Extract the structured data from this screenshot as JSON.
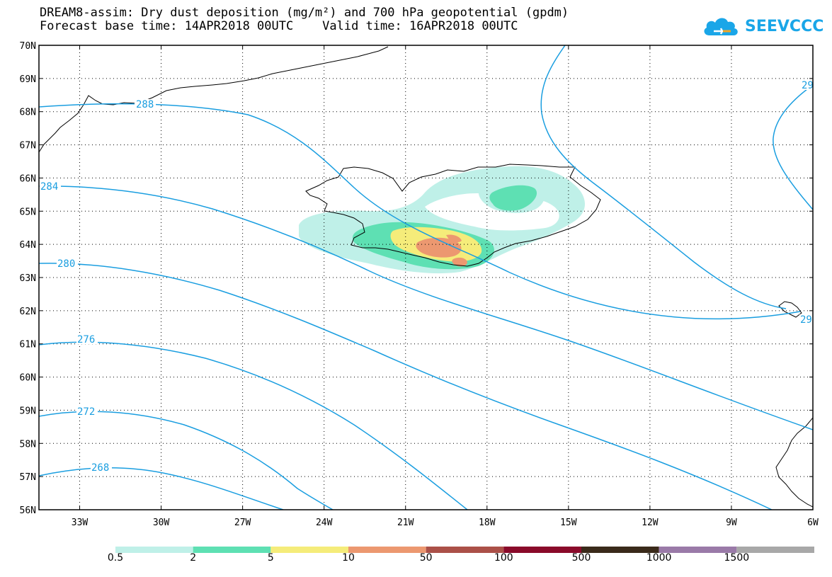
{
  "header": {
    "title_line1": "DREAM8-assim: Dry dust deposition (mg/m²) and 700 hPa geopotential (gpdm)",
    "title_line2": "Forecast base time: 14APR2018 00UTC    Valid time: 16APR2018 00UTC"
  },
  "logo": {
    "text": "SEEVCCC",
    "icon": "cloud-logo-icon",
    "color": "#1aa6e8"
  },
  "map": {
    "lat_labels": [
      "70N",
      "69N",
      "68N",
      "67N",
      "66N",
      "65N",
      "64N",
      "63N",
      "62N",
      "61N",
      "60N",
      "59N",
      "58N",
      "57N",
      "56N"
    ],
    "lon_labels": [
      "33W",
      "30W",
      "27W",
      "24W",
      "21W",
      "18W",
      "15W",
      "12W",
      "9W",
      "6W"
    ],
    "contour_color": "#1a9ee0",
    "contour_labels": [
      "288",
      "284",
      "280",
      "276",
      "272",
      "268",
      "29",
      "29"
    ]
  },
  "colorbar": {
    "labels": [
      "0.5",
      "2",
      "5",
      "10",
      "50",
      "100",
      "500",
      "1000",
      "1500"
    ],
    "colors": [
      "#bff0e8",
      "#5ee0b3",
      "#f5ec7a",
      "#ec9870",
      "#ab5048",
      "#8a0a2a",
      "#3a2a1a",
      "#9a7aa8",
      "#a8a8a8"
    ]
  }
}
